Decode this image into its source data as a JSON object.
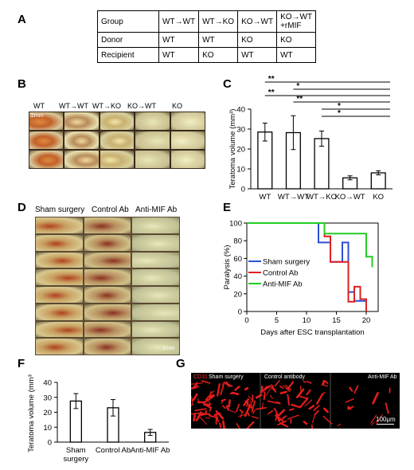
{
  "panels": {
    "A": "A",
    "B": "B",
    "C": "C",
    "D": "D",
    "E": "E",
    "F": "F",
    "G": "G"
  },
  "table": {
    "rows": [
      [
        "Group",
        "WT→WT",
        "WT→KO",
        "KO→WT",
        "KO→WT\n+rMIF"
      ],
      [
        "Donor",
        "WT",
        "WT",
        "KO",
        "KO"
      ],
      [
        "Recipient",
        "WT",
        "KO",
        "WT",
        "WT"
      ]
    ]
  },
  "panelB": {
    "col_labels": [
      "WT",
      "WT→WT",
      "WT→KO",
      "KO→WT",
      "KO"
    ],
    "scale": "2mm"
  },
  "panelD": {
    "col_labels": [
      "Sham surgery",
      "Control Ab",
      "Anti-MIF Ab"
    ],
    "scale": "2mm"
  },
  "panelG": {
    "stain": "CD31",
    "labels": [
      "Sham surgery",
      "Control antibody",
      "Anti-MIF Ab"
    ],
    "scale": "100μm"
  },
  "chart_data": [
    {
      "id": "C",
      "type": "bar",
      "ylabel": "Teratoma volume (mm³)",
      "categories": [
        "WT",
        "WT→WT",
        "WT→KO",
        "KO→WT",
        "KO"
      ],
      "values": [
        28.5,
        28.2,
        25.2,
        5.5,
        8.0
      ],
      "errors": [
        4.5,
        8.5,
        3.8,
        1.0,
        1.0
      ],
      "ylim": [
        0,
        40
      ],
      "yticks": [
        0,
        10,
        20,
        30,
        40
      ],
      "significance": [
        {
          "from": "WT",
          "to": "KO",
          "label": "**"
        },
        {
          "from": "WT→WT",
          "to": "KO",
          "label": "*"
        },
        {
          "from": "WT",
          "to": "KO",
          "label": "**"
        },
        {
          "from": "WT→WT",
          "to": "KO",
          "label": "**"
        },
        {
          "from": "WT→KO",
          "to": "KO",
          "label": "*"
        },
        {
          "from": "WT→KO",
          "to": "KO",
          "label": "*"
        }
      ]
    },
    {
      "id": "E",
      "type": "line",
      "xlabel": "Days after ESC transplantation",
      "ylabel": "Paralysis (%)",
      "xlim": [
        0,
        22
      ],
      "ylim": [
        0,
        100
      ],
      "xticks": [
        0,
        5,
        10,
        15,
        20
      ],
      "yticks": [
        0,
        20,
        40,
        60,
        80,
        100
      ],
      "series": [
        {
          "name": "Sham surgery",
          "color": "#2b4fd6",
          "x": [
            0,
            12,
            12,
            14,
            14,
            16,
            16,
            17,
            17,
            18,
            18,
            20,
            20
          ],
          "y": [
            100,
            100,
            78,
            78,
            56,
            56,
            78,
            78,
            22,
            22,
            12,
            12,
            0
          ]
        },
        {
          "name": "Control Ab",
          "color": "#e01f1f",
          "x": [
            0,
            13,
            13,
            14,
            14,
            17,
            17,
            18,
            18,
            19,
            19,
            20,
            20
          ],
          "y": [
            100,
            100,
            85,
            85,
            56,
            56,
            11,
            11,
            28,
            28,
            14,
            14,
            0
          ]
        },
        {
          "name": "Anti-MIF Ab",
          "color": "#22cc22",
          "x": [
            0,
            13,
            13,
            14,
            14,
            20,
            20,
            21,
            21
          ],
          "y": [
            100,
            100,
            88,
            88,
            88,
            88,
            62,
            62,
            50
          ]
        }
      ]
    },
    {
      "id": "F",
      "type": "bar",
      "ylabel": "Teratoma volume (mm³)",
      "categories": [
        "Sham\nsurgery",
        "Control Ab",
        "Anti-MIF Ab"
      ],
      "values": [
        27.5,
        23.0,
        6.5
      ],
      "errors": [
        5.0,
        5.5,
        2.0
      ],
      "ylim": [
        0,
        40
      ],
      "yticks": [
        0,
        10,
        20,
        30,
        40
      ]
    }
  ]
}
